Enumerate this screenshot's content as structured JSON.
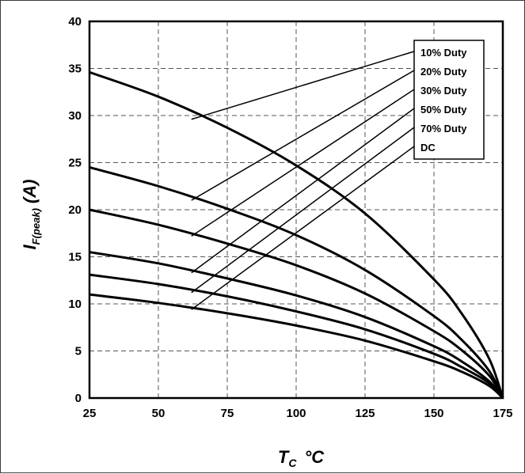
{
  "chart_data": {
    "type": "line",
    "title": "",
    "xlabel": {
      "main": "T",
      "sub": "C",
      "unit": "°C"
    },
    "ylabel": {
      "main": "I",
      "sub": "F(peak)",
      "unit": "(A)"
    },
    "xlim": [
      25,
      175
    ],
    "ylim": [
      0,
      40
    ],
    "xticks": [
      25,
      50,
      75,
      100,
      125,
      150,
      175
    ],
    "yticks": [
      0,
      5,
      10,
      15,
      20,
      25,
      30,
      35,
      40
    ],
    "grid": true,
    "grid_style": "dashed",
    "legend_position": "top-right",
    "line_color": "#000000",
    "x": [
      25,
      50,
      75,
      100,
      125,
      150,
      160,
      170,
      175
    ],
    "series": [
      {
        "name": "10% Duty",
        "values": [
          34.6,
          32.0,
          28.7,
          24.7,
          19.6,
          12.6,
          9.0,
          4.2,
          0
        ]
      },
      {
        "name": "20% Duty",
        "values": [
          24.5,
          22.5,
          20.1,
          17.3,
          13.6,
          8.7,
          6.2,
          2.9,
          0
        ]
      },
      {
        "name": "30% Duty",
        "values": [
          20.0,
          18.4,
          16.4,
          14.1,
          11.1,
          7.1,
          5.1,
          2.4,
          0
        ]
      },
      {
        "name": "50% Duty",
        "values": [
          15.5,
          14.3,
          12.7,
          10.9,
          8.6,
          5.5,
          3.9,
          1.8,
          0
        ]
      },
      {
        "name": "70% Duty",
        "values": [
          13.1,
          12.1,
          10.8,
          9.2,
          7.3,
          4.7,
          3.3,
          1.6,
          0
        ]
      },
      {
        "name": "DC",
        "values": [
          11.0,
          10.1,
          9.0,
          7.7,
          6.1,
          3.9,
          2.8,
          1.3,
          0
        ]
      }
    ],
    "annotations": [
      {
        "series": "10% Duty",
        "anchor_x": 62,
        "anchor_y": 29.6
      },
      {
        "series": "20% Duty",
        "anchor_x": 62,
        "anchor_y": 21.0
      },
      {
        "series": "30% Duty",
        "anchor_x": 62,
        "anchor_y": 17.2
      },
      {
        "series": "50% Duty",
        "anchor_x": 62,
        "anchor_y": 13.3
      },
      {
        "series": "70% Duty",
        "anchor_x": 62,
        "anchor_y": 11.2
      },
      {
        "series": "DC",
        "anchor_x": 62,
        "anchor_y": 9.4
      }
    ]
  }
}
